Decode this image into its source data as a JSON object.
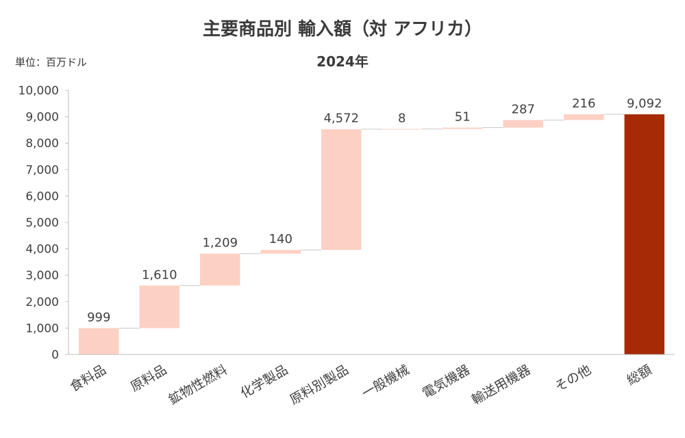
{
  "chart_data": {
    "type": "bar",
    "subtype": "waterfall",
    "title": "主要商品別 輸入額（対 アフリカ）",
    "subtitle": "2024年",
    "unit_label": "単位：百万ドル",
    "categories": [
      "食料品",
      "原料品",
      "鉱物性燃料",
      "化学製品",
      "原料別製品",
      "一般機械",
      "電気機器",
      "輸送用機器",
      "その他",
      "総額"
    ],
    "values": [
      999,
      1610,
      1209,
      140,
      4572,
      8,
      51,
      287,
      216,
      9092
    ],
    "data_labels": [
      "999",
      "1,610",
      "1,209",
      "140",
      "4,572",
      "8",
      "51",
      "287",
      "216",
      "9,092"
    ],
    "total_index": 9,
    "ylim": [
      0,
      10000
    ],
    "yticks": [
      0,
      1000,
      2000,
      3000,
      4000,
      5000,
      6000,
      7000,
      8000,
      9000,
      10000
    ],
    "ytick_labels": [
      "0",
      "1,000",
      "2,000",
      "3,000",
      "4,000",
      "5,000",
      "6,000",
      "7,000",
      "8,000",
      "9,000",
      "10,000"
    ],
    "grid": false,
    "legend": "none",
    "colors": {
      "increment": "#fdd0c4",
      "total": "#a52a05",
      "connector": "#c8c8c8",
      "axis": "#bfbfbf"
    }
  }
}
